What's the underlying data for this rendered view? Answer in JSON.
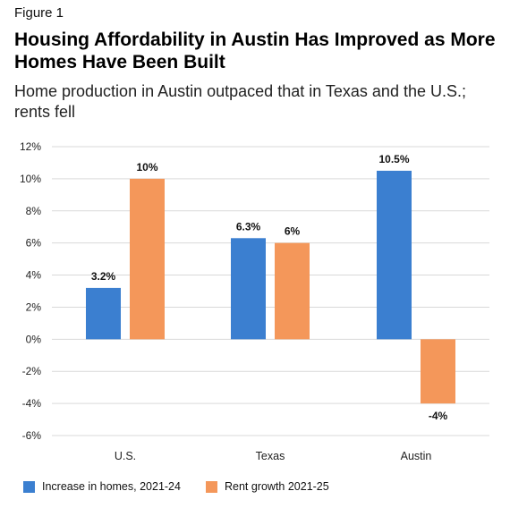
{
  "figure_label": "Figure 1",
  "title": "Housing Affordability in Austin Has Improved as More Homes Have Been Built",
  "subtitle": "Home production in Austin outpaced that in Texas and the U.S.; rents fell",
  "colors": {
    "homes": "#3b7fd0",
    "rent": "#f4975a",
    "grid": "#d9d9d9"
  },
  "chart_data": {
    "type": "bar",
    "categories": [
      "U.S.",
      "Texas",
      "Austin"
    ],
    "series": [
      {
        "name": "Increase in homes, 2021-24",
        "values": [
          3.2,
          6.3,
          10.5
        ],
        "labels": [
          "3.2%",
          "6.3%",
          "10.5%"
        ]
      },
      {
        "name": "Rent growth 2021-25",
        "values": [
          10,
          6,
          -4
        ],
        "labels": [
          "10%",
          "6%",
          "-4%"
        ]
      }
    ],
    "ylim": [
      -6,
      12
    ],
    "yticks": [
      12,
      10,
      8,
      6,
      4,
      2,
      0,
      -2,
      -4,
      -6
    ],
    "ytick_labels": [
      "12%",
      "10%",
      "8%",
      "6%",
      "4%",
      "2%",
      "0%",
      "-2%",
      "-4%",
      "-6%"
    ],
    "grid": true,
    "legend": "bottom",
    "xlabel": "",
    "ylabel": ""
  }
}
